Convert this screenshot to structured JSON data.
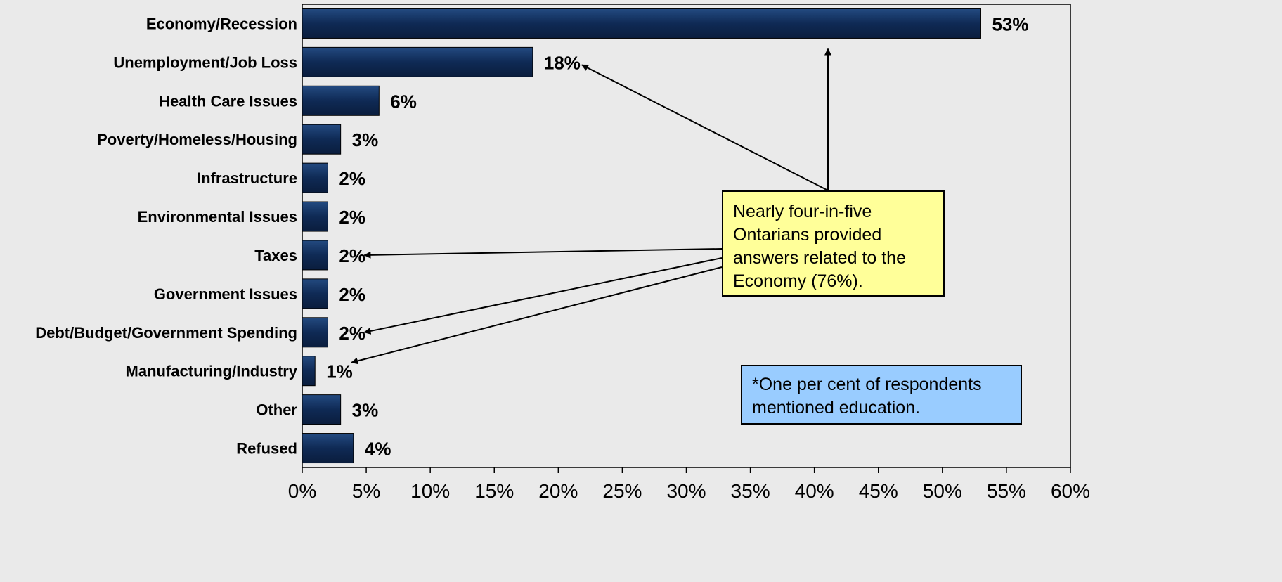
{
  "chart_data": {
    "type": "bar",
    "orientation": "horizontal",
    "categories": [
      "Economy/Recession",
      "Unemployment/Job Loss",
      "Health Care Issues",
      "Poverty/Homeless/Housing",
      "Infrastructure",
      "Environmental Issues",
      "Taxes",
      "Government Issues",
      "Debt/Budget/Government Spending",
      "Manufacturing/Industry",
      "Other",
      "Refused"
    ],
    "values": [
      53,
      18,
      6,
      3,
      2,
      2,
      2,
      2,
      2,
      1,
      3,
      4
    ],
    "value_labels": [
      "53%",
      "18%",
      "6%",
      "3%",
      "2%",
      "2%",
      "2%",
      "2%",
      "2%",
      "1%",
      "3%",
      "4%"
    ],
    "xlim": [
      0,
      60
    ],
    "x_ticks": [
      0,
      5,
      10,
      15,
      20,
      25,
      30,
      35,
      40,
      45,
      50,
      55,
      60
    ],
    "x_tick_labels": [
      "0%",
      "5%",
      "10%",
      "15%",
      "20%",
      "25%",
      "30%",
      "35%",
      "40%",
      "45%",
      "50%",
      "55%",
      "60%"
    ],
    "grid": false,
    "title": "",
    "xlabel": "",
    "ylabel": "",
    "colors": {
      "bar": "#0f2a55",
      "bar_highlight": "#234a80",
      "background": "#eaeaea",
      "callout": "#ffff99",
      "footnote": "#99ccff"
    },
    "annotations": {
      "callout_text": "Nearly four-in-five Ontarians provided answers related to the Economy (76%).",
      "callout_targets": [
        "Economy/Recession",
        "Unemployment/Job Loss",
        "Taxes",
        "Debt/Budget/Government Spending",
        "Manufacturing/Industry"
      ],
      "footnote_text": "*One per cent of respondents mentioned education."
    }
  }
}
